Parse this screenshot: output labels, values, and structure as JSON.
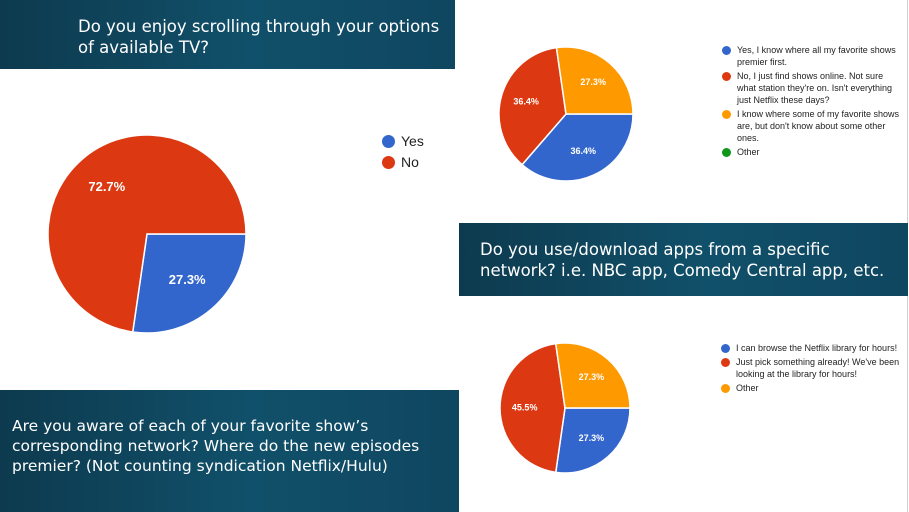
{
  "questions": {
    "q1": "Do you enjoy scrolling through your options of available TV?",
    "q2": "Do you use/download apps from a specific network? i.e. NBC app, Comedy Central app, etc.",
    "q3": "Are you aware of each of your favorite show’s corresponding network? Where do the new episodes premier? (Not counting syndication Netflix/Hulu)"
  },
  "chart_data": [
    {
      "type": "pie",
      "title": "",
      "categories": [
        "Yes",
        "No"
      ],
      "values": [
        27.3,
        72.7
      ],
      "labels": [
        "27.3%",
        "72.7%"
      ],
      "colors": [
        "#3366cc",
        "#dc3912"
      ],
      "legend": "right"
    },
    {
      "type": "pie",
      "title": "",
      "categories": [
        "Yes, I know where all my favorite shows premier first.",
        "No, I just find shows online. Not sure what station they're on. Isn't everything just Netflix these days?",
        "I know where some of my favorite shows are, but don't know about some other ones.",
        "Other"
      ],
      "values": [
        36.4,
        36.4,
        27.3,
        0
      ],
      "labels": [
        "36.4%",
        "36.4%",
        "27.3%",
        ""
      ],
      "colors": [
        "#3366cc",
        "#dc3912",
        "#ff9900",
        "#109618"
      ],
      "legend": "right"
    },
    {
      "type": "pie",
      "title": "",
      "categories": [
        "I can browse the Netflix library for hours!",
        "Just pick something already! We've been looking at the library for hours!",
        "Other"
      ],
      "values": [
        27.3,
        45.5,
        27.3
      ],
      "labels": [
        "27.3%",
        "45.5%",
        "27.3%"
      ],
      "colors": [
        "#3366cc",
        "#dc3912",
        "#ff9900"
      ],
      "legend": "right"
    }
  ]
}
